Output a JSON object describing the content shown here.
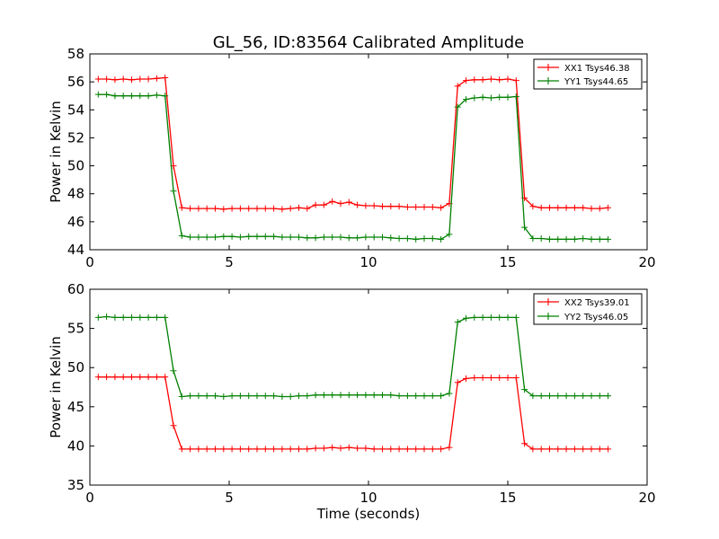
{
  "chart_data": [
    {
      "type": "line",
      "title": "GL_56, ID:83564 Calibrated Amplitude",
      "xlabel": "",
      "ylabel": "Power in Kelvin",
      "xlim": [
        0,
        20
      ],
      "ylim": [
        44,
        58
      ],
      "xticks": [
        "0",
        "5",
        "10",
        "15",
        "20"
      ],
      "yticks": [
        "44",
        "46",
        "48",
        "50",
        "52",
        "54",
        "56",
        "58"
      ],
      "legend_position": "top-right",
      "x": [
        0.3,
        0.6,
        0.9,
        1.2,
        1.5,
        1.8,
        2.1,
        2.4,
        2.7,
        3.0,
        3.3,
        3.6,
        3.9,
        4.2,
        4.5,
        4.8,
        5.1,
        5.4,
        5.7,
        6.0,
        6.3,
        6.6,
        6.9,
        7.2,
        7.5,
        7.8,
        8.1,
        8.4,
        8.7,
        9.0,
        9.3,
        9.6,
        9.9,
        10.2,
        10.5,
        10.8,
        11.1,
        11.4,
        11.7,
        12.0,
        12.3,
        12.6,
        12.9,
        13.2,
        13.5,
        13.8,
        14.1,
        14.4,
        14.7,
        15.0,
        15.3,
        15.6,
        15.9,
        16.2,
        16.5,
        16.8,
        17.1,
        17.4,
        17.7,
        18.0,
        18.3,
        18.6
      ],
      "series": [
        {
          "name": "XX1 Tsys46.38",
          "color": "#ff0000",
          "values": [
            56.2,
            56.2,
            56.15,
            56.2,
            56.15,
            56.2,
            56.2,
            56.25,
            56.3,
            50.0,
            47.0,
            46.95,
            46.95,
            46.95,
            46.95,
            46.9,
            46.95,
            46.95,
            46.95,
            46.95,
            46.95,
            46.95,
            46.9,
            46.95,
            47.0,
            46.95,
            47.2,
            47.2,
            47.45,
            47.3,
            47.4,
            47.2,
            47.15,
            47.15,
            47.1,
            47.1,
            47.1,
            47.05,
            47.05,
            47.05,
            47.05,
            47.0,
            47.3,
            55.7,
            56.1,
            56.15,
            56.15,
            56.2,
            56.15,
            56.2,
            56.1,
            47.7,
            47.1,
            47.0,
            47.0,
            47.0,
            47.0,
            47.0,
            47.0,
            46.95,
            46.95,
            47.0
          ]
        },
        {
          "name": "YY1 Tsys44.65",
          "color": "#008000",
          "values": [
            55.1,
            55.1,
            55.0,
            55.0,
            55.0,
            55.0,
            55.0,
            55.05,
            55.0,
            48.2,
            45.0,
            44.9,
            44.9,
            44.9,
            44.9,
            44.95,
            44.95,
            44.9,
            44.95,
            44.95,
            44.95,
            44.95,
            44.9,
            44.9,
            44.9,
            44.85,
            44.85,
            44.9,
            44.9,
            44.9,
            44.85,
            44.85,
            44.9,
            44.9,
            44.9,
            44.85,
            44.8,
            44.8,
            44.75,
            44.8,
            44.8,
            44.75,
            45.1,
            54.2,
            54.75,
            54.85,
            54.9,
            54.85,
            54.9,
            54.9,
            54.95,
            45.6,
            44.8,
            44.8,
            44.75,
            44.75,
            44.75,
            44.75,
            44.8,
            44.75,
            44.75,
            44.75
          ]
        }
      ]
    },
    {
      "type": "line",
      "title": "",
      "xlabel": "Time (seconds)",
      "ylabel": "Power in Kelvin",
      "xlim": [
        0,
        20
      ],
      "ylim": [
        35,
        60
      ],
      "xticks": [
        "0",
        "5",
        "10",
        "15",
        "20"
      ],
      "yticks": [
        "35",
        "40",
        "45",
        "50",
        "55",
        "60"
      ],
      "legend_position": "top-right",
      "x": [
        0.3,
        0.6,
        0.9,
        1.2,
        1.5,
        1.8,
        2.1,
        2.4,
        2.7,
        3.0,
        3.3,
        3.6,
        3.9,
        4.2,
        4.5,
        4.8,
        5.1,
        5.4,
        5.7,
        6.0,
        6.3,
        6.6,
        6.9,
        7.2,
        7.5,
        7.8,
        8.1,
        8.4,
        8.7,
        9.0,
        9.3,
        9.6,
        9.9,
        10.2,
        10.5,
        10.8,
        11.1,
        11.4,
        11.7,
        12.0,
        12.3,
        12.6,
        12.9,
        13.2,
        13.5,
        13.8,
        14.1,
        14.4,
        14.7,
        15.0,
        15.3,
        15.6,
        15.9,
        16.2,
        16.5,
        16.8,
        17.1,
        17.4,
        17.7,
        18.0,
        18.3,
        18.6
      ],
      "series": [
        {
          "name": "XX2 Tsys39.01",
          "color": "#ff0000",
          "values": [
            48.8,
            48.8,
            48.8,
            48.8,
            48.8,
            48.8,
            48.8,
            48.8,
            48.8,
            42.6,
            39.6,
            39.6,
            39.6,
            39.6,
            39.6,
            39.6,
            39.6,
            39.6,
            39.6,
            39.6,
            39.6,
            39.6,
            39.6,
            39.6,
            39.6,
            39.6,
            39.7,
            39.7,
            39.8,
            39.7,
            39.8,
            39.7,
            39.7,
            39.6,
            39.6,
            39.6,
            39.6,
            39.6,
            39.6,
            39.6,
            39.6,
            39.6,
            39.8,
            48.1,
            48.6,
            48.7,
            48.7,
            48.7,
            48.7,
            48.7,
            48.7,
            40.3,
            39.6,
            39.6,
            39.6,
            39.6,
            39.6,
            39.6,
            39.6,
            39.6,
            39.6,
            39.6
          ]
        },
        {
          "name": "YY2 Tsys46.05",
          "color": "#008000",
          "values": [
            56.4,
            56.5,
            56.4,
            56.4,
            56.4,
            56.4,
            56.4,
            56.4,
            56.4,
            49.6,
            46.3,
            46.4,
            46.4,
            46.4,
            46.4,
            46.3,
            46.4,
            46.4,
            46.4,
            46.4,
            46.4,
            46.4,
            46.3,
            46.3,
            46.4,
            46.4,
            46.5,
            46.5,
            46.5,
            46.5,
            46.5,
            46.5,
            46.5,
            46.5,
            46.5,
            46.5,
            46.4,
            46.4,
            46.4,
            46.4,
            46.4,
            46.4,
            46.7,
            55.8,
            56.3,
            56.4,
            56.4,
            56.4,
            56.4,
            56.4,
            56.4,
            47.2,
            46.4,
            46.4,
            46.4,
            46.4,
            46.4,
            46.4,
            46.4,
            46.4,
            46.4,
            46.4
          ]
        }
      ]
    }
  ]
}
